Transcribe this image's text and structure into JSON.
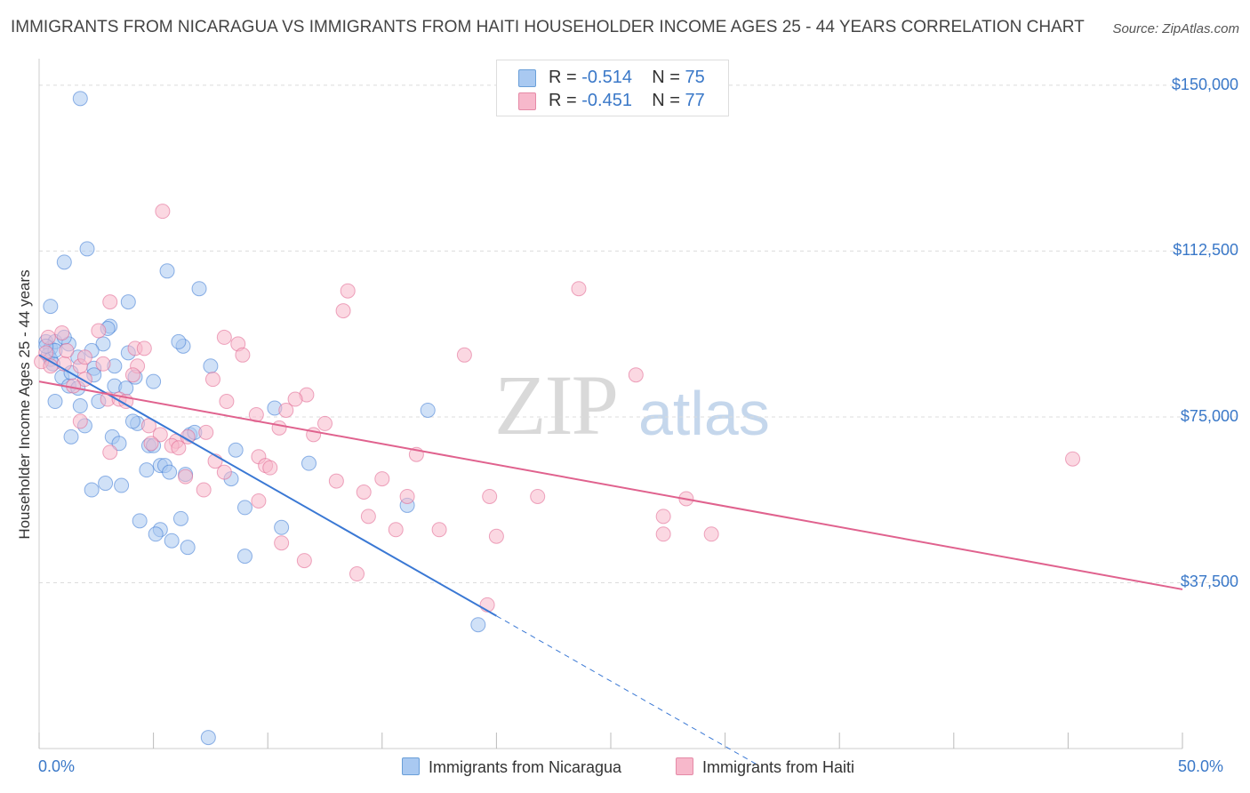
{
  "title": "IMMIGRANTS FROM NICARAGUA VS IMMIGRANTS FROM HAITI HOUSEHOLDER INCOME AGES 25 - 44 YEARS CORRELATION CHART",
  "source": "Source: ZipAtlas.com",
  "watermark": {
    "zip": "ZIP",
    "atlas": "atlas"
  },
  "legend_top": [
    {
      "r_label": "R = ",
      "r_value": "-0.514",
      "n_label": "N = ",
      "n_value": "75",
      "color": "#a9c9f1"
    },
    {
      "r_label": "R = ",
      "r_value": "-0.451",
      "n_label": "N = ",
      "n_value": "77",
      "color": "#f7b8cb"
    }
  ],
  "legend_bottom": [
    {
      "label": "Immigrants from Nicaragua",
      "color": "#a9c9f1"
    },
    {
      "label": "Immigrants from Haiti",
      "color": "#f7b8cb"
    }
  ],
  "chart_data": {
    "type": "scatter",
    "title": "IMMIGRANTS FROM NICARAGUA VS IMMIGRANTS FROM HAITI HOUSEHOLDER INCOME AGES 25 - 44 YEARS CORRELATION CHART",
    "xlabel": "",
    "ylabel": "Householder Income Ages 25 - 44 years",
    "xlim": [
      0,
      50
    ],
    "ylim": [
      0,
      154000
    ],
    "x_tick_labels": [
      "0.0%",
      "50.0%"
    ],
    "y_ticks": [
      37500,
      75000,
      112500,
      150000
    ],
    "y_tick_labels": [
      "$37,500",
      "$75,000",
      "$112,500",
      "$150,000"
    ],
    "grid": true,
    "series": [
      {
        "name": "Immigrants from Nicaragua",
        "color": "#3a78d4",
        "fill": "#a9c9f1",
        "r": -0.514,
        "n": 75,
        "trend": {
          "x0": 0.0,
          "y0": 89000,
          "x1": 20.0,
          "y1": 30000,
          "dash_to_x": 31.5
        },
        "points": [
          [
            1.8,
            147000
          ],
          [
            1.1,
            110000
          ],
          [
            2.1,
            113000
          ],
          [
            5.6,
            108000
          ],
          [
            7.0,
            104000
          ],
          [
            0.5,
            100000
          ],
          [
            3.9,
            101000
          ],
          [
            0.3,
            92000
          ],
          [
            0.5,
            90500
          ],
          [
            0.7,
            92000
          ],
          [
            1.3,
            91500
          ],
          [
            1.1,
            93000
          ],
          [
            2.8,
            91500
          ],
          [
            3.1,
            95500
          ],
          [
            3.0,
            95000
          ],
          [
            6.3,
            91000
          ],
          [
            6.1,
            92000
          ],
          [
            0.4,
            89000
          ],
          [
            0.5,
            88000
          ],
          [
            0.6,
            87000
          ],
          [
            0.7,
            90000
          ],
          [
            1.7,
            88500
          ],
          [
            2.3,
            90000
          ],
          [
            3.9,
            89500
          ],
          [
            2.4,
            86000
          ],
          [
            3.3,
            86500
          ],
          [
            4.2,
            84000
          ],
          [
            1.0,
            84000
          ],
          [
            1.3,
            82000
          ],
          [
            1.7,
            81500
          ],
          [
            2.4,
            84500
          ],
          [
            3.3,
            82000
          ],
          [
            3.8,
            81500
          ],
          [
            5.0,
            83000
          ],
          [
            7.5,
            86500
          ],
          [
            0.7,
            78500
          ],
          [
            1.8,
            77500
          ],
          [
            2.6,
            78500
          ],
          [
            10.3,
            77000
          ],
          [
            17.0,
            76500
          ],
          [
            4.3,
            73500
          ],
          [
            2.0,
            73000
          ],
          [
            1.4,
            70500
          ],
          [
            3.2,
            70500
          ],
          [
            3.5,
            69000
          ],
          [
            4.8,
            68500
          ],
          [
            5.0,
            68500
          ],
          [
            6.6,
            71000
          ],
          [
            6.8,
            71500
          ],
          [
            8.6,
            67500
          ],
          [
            5.3,
            64000
          ],
          [
            5.5,
            64000
          ],
          [
            4.7,
            63000
          ],
          [
            5.7,
            62500
          ],
          [
            6.4,
            62000
          ],
          [
            2.9,
            60000
          ],
          [
            3.6,
            59500
          ],
          [
            8.4,
            61000
          ],
          [
            11.8,
            64500
          ],
          [
            2.3,
            58500
          ],
          [
            9.0,
            54500
          ],
          [
            16.1,
            55000
          ],
          [
            4.4,
            51500
          ],
          [
            6.2,
            52000
          ],
          [
            5.3,
            49500
          ],
          [
            5.1,
            48500
          ],
          [
            10.6,
            50000
          ],
          [
            5.8,
            47000
          ],
          [
            6.5,
            45500
          ],
          [
            9.0,
            43500
          ],
          [
            19.2,
            28000
          ],
          [
            7.4,
            2500
          ],
          [
            0.3,
            91000
          ],
          [
            1.4,
            85000
          ],
          [
            4.1,
            74000
          ]
        ]
      },
      {
        "name": "Immigrants from Haiti",
        "color": "#e0628e",
        "fill": "#f7b8cb",
        "r": -0.451,
        "n": 77,
        "trend": {
          "x0": 0.0,
          "y0": 83000,
          "x1": 50.0,
          "y1": 36000
        },
        "points": [
          [
            5.4,
            121500
          ],
          [
            13.5,
            103500
          ],
          [
            23.6,
            104000
          ],
          [
            13.3,
            99000
          ],
          [
            3.1,
            101000
          ],
          [
            1.0,
            94000
          ],
          [
            2.6,
            94500
          ],
          [
            8.1,
            93000
          ],
          [
            0.4,
            93000
          ],
          [
            4.2,
            90500
          ],
          [
            4.6,
            90500
          ],
          [
            8.7,
            91500
          ],
          [
            8.9,
            89000
          ],
          [
            18.6,
            89000
          ],
          [
            0.1,
            87500
          ],
          [
            0.5,
            86500
          ],
          [
            1.1,
            87000
          ],
          [
            1.8,
            86500
          ],
          [
            2.8,
            87000
          ],
          [
            4.3,
            86500
          ],
          [
            26.1,
            84500
          ],
          [
            2.0,
            83500
          ],
          [
            1.5,
            82000
          ],
          [
            7.6,
            83500
          ],
          [
            4.1,
            84500
          ],
          [
            11.7,
            80000
          ],
          [
            11.2,
            79000
          ],
          [
            3.0,
            79000
          ],
          [
            3.5,
            79000
          ],
          [
            8.2,
            78500
          ],
          [
            10.8,
            76500
          ],
          [
            9.5,
            75500
          ],
          [
            12.5,
            73500
          ],
          [
            1.8,
            74000
          ],
          [
            4.8,
            73000
          ],
          [
            5.3,
            71000
          ],
          [
            7.3,
            71500
          ],
          [
            12.0,
            71000
          ],
          [
            10.5,
            72500
          ],
          [
            6.0,
            69500
          ],
          [
            6.5,
            70500
          ],
          [
            5.8,
            68500
          ],
          [
            6.1,
            68000
          ],
          [
            4.9,
            69000
          ],
          [
            3.1,
            67000
          ],
          [
            16.5,
            66500
          ],
          [
            9.6,
            66000
          ],
          [
            7.7,
            65000
          ],
          [
            9.9,
            64000
          ],
          [
            10.1,
            63500
          ],
          [
            8.1,
            62500
          ],
          [
            6.4,
            61500
          ],
          [
            15.0,
            61000
          ],
          [
            13.0,
            60500
          ],
          [
            7.2,
            58500
          ],
          [
            14.2,
            58000
          ],
          [
            16.1,
            57000
          ],
          [
            9.6,
            56000
          ],
          [
            19.7,
            57000
          ],
          [
            21.8,
            57000
          ],
          [
            28.3,
            56500
          ],
          [
            45.2,
            65500
          ],
          [
            14.4,
            52500
          ],
          [
            27.3,
            52500
          ],
          [
            15.6,
            49500
          ],
          [
            17.5,
            49500
          ],
          [
            20.0,
            48000
          ],
          [
            27.3,
            48500
          ],
          [
            29.4,
            48500
          ],
          [
            10.6,
            46500
          ],
          [
            11.6,
            42500
          ],
          [
            13.9,
            39500
          ],
          [
            19.6,
            32500
          ],
          [
            0.3,
            89500
          ],
          [
            1.2,
            90000
          ],
          [
            2.0,
            88500
          ],
          [
            3.8,
            78500
          ]
        ]
      }
    ]
  }
}
